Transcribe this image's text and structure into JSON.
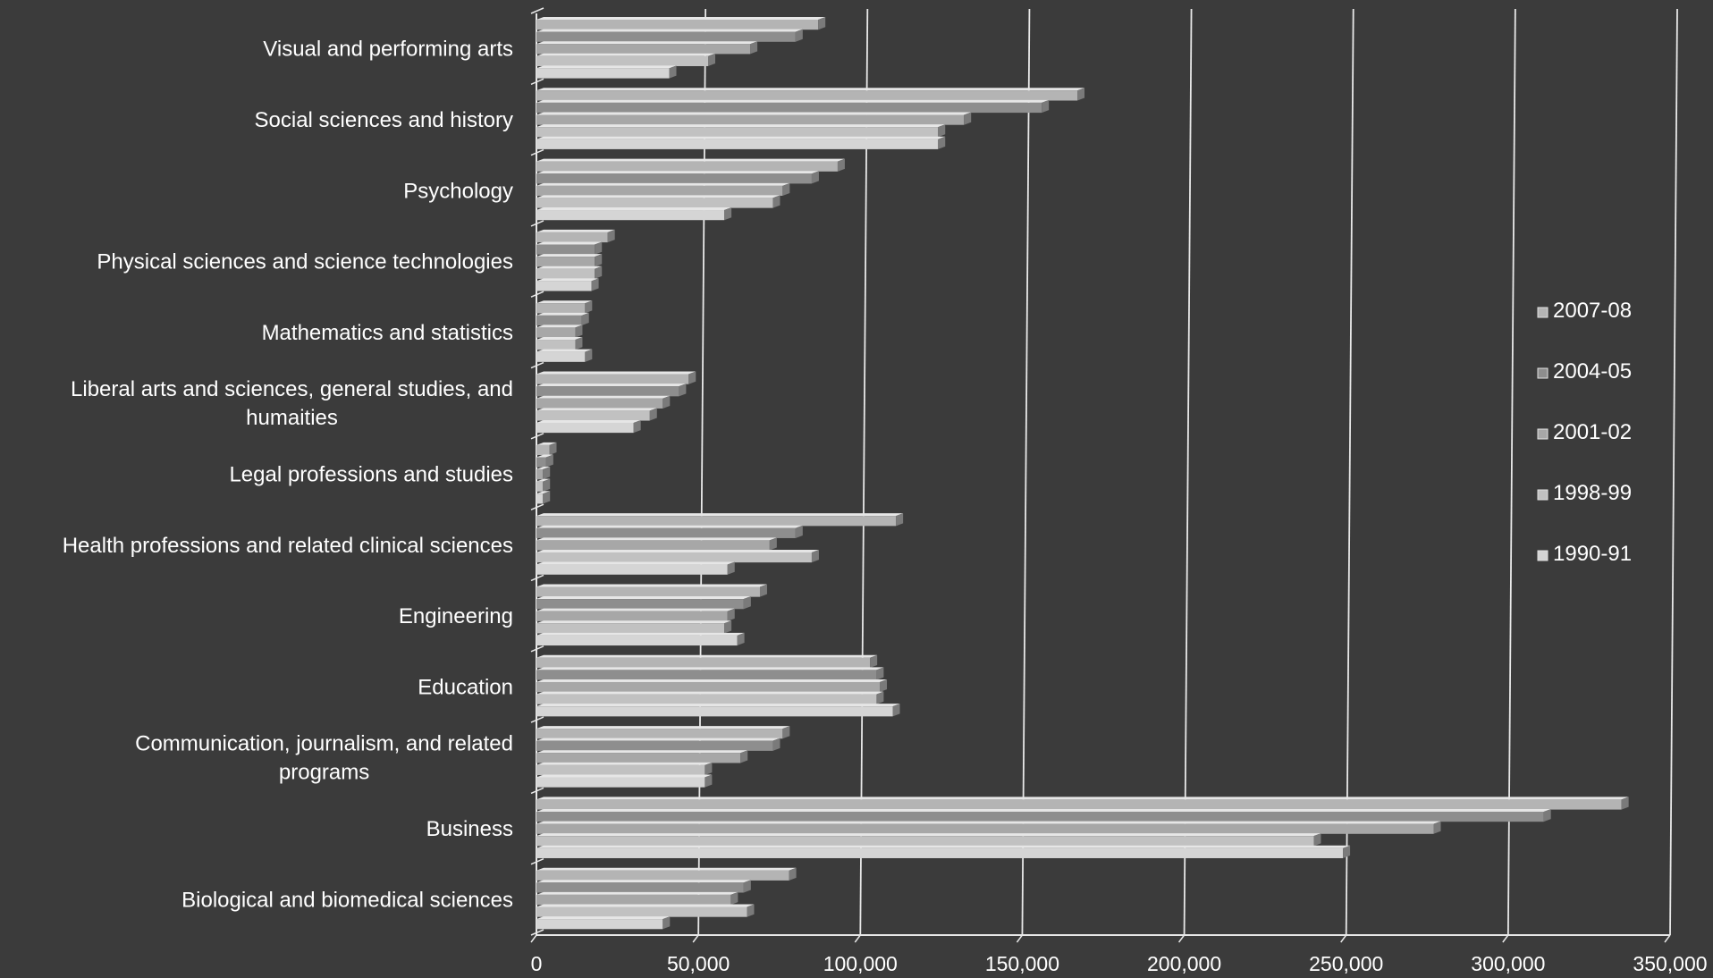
{
  "chart_data": {
    "type": "bar",
    "orientation": "horizontal",
    "categories": [
      "Visual and performing arts",
      "Social sciences and history",
      "Psychology",
      "Physical sciences and science technologies",
      "Mathematics and statistics",
      "Liberal arts and sciences, general studies, and humaities",
      "Legal professions and studies",
      "Health professions and related clinical sciences",
      "Engineering",
      "Education",
      "Communication, journalism, and related programs",
      "Business",
      "Biological and biomedical sciences"
    ],
    "category_lines": [
      [
        "Visual and performing arts"
      ],
      [
        "Social sciences and history"
      ],
      [
        "Psychology"
      ],
      [
        "Physical sciences and science technologies"
      ],
      [
        "Mathematics and statistics"
      ],
      [
        "Liberal arts and sciences, general studies, and",
        "humaities"
      ],
      [
        "Legal professions and studies"
      ],
      [
        "Health professions and related clinical sciences"
      ],
      [
        "Engineering"
      ],
      [
        "Education"
      ],
      [
        "Communication, journalism, and related",
        "programs"
      ],
      [
        "Business"
      ],
      [
        "Biological and biomedical sciences"
      ]
    ],
    "series": [
      {
        "name": "2007-08",
        "color": "#b4b4b4",
        "values": [
          87000,
          167000,
          93000,
          22000,
          15000,
          47000,
          4000,
          111000,
          69000,
          103000,
          76000,
          335000,
          78000
        ]
      },
      {
        "name": "2004-05",
        "color": "#8e8e8e",
        "values": [
          80000,
          156000,
          85000,
          18000,
          14000,
          44000,
          3000,
          80000,
          64000,
          105000,
          73000,
          311000,
          64000
        ]
      },
      {
        "name": "2001-02",
        "color": "#a7a7a7",
        "values": [
          66000,
          132000,
          76000,
          18000,
          12000,
          39000,
          2000,
          72000,
          59000,
          106000,
          63000,
          277000,
          60000
        ]
      },
      {
        "name": "1998-99",
        "color": "#c1c1c1",
        "values": [
          53000,
          124000,
          73000,
          18000,
          12000,
          35000,
          2000,
          85000,
          58000,
          105000,
          52000,
          240000,
          65000
        ]
      },
      {
        "name": "1990-91",
        "color": "#d5d5d5",
        "values": [
          41000,
          124000,
          58000,
          17000,
          15000,
          30000,
          2000,
          59000,
          62000,
          110000,
          52000,
          249000,
          39000
        ]
      }
    ],
    "x_ticks": [
      "0",
      "50,000",
      "100,000",
      "150,000",
      "200,000",
      "250,000",
      "300,000",
      "350,000"
    ],
    "xlim": [
      0,
      350000
    ],
    "grid": "vertical",
    "legend_position": "right"
  }
}
